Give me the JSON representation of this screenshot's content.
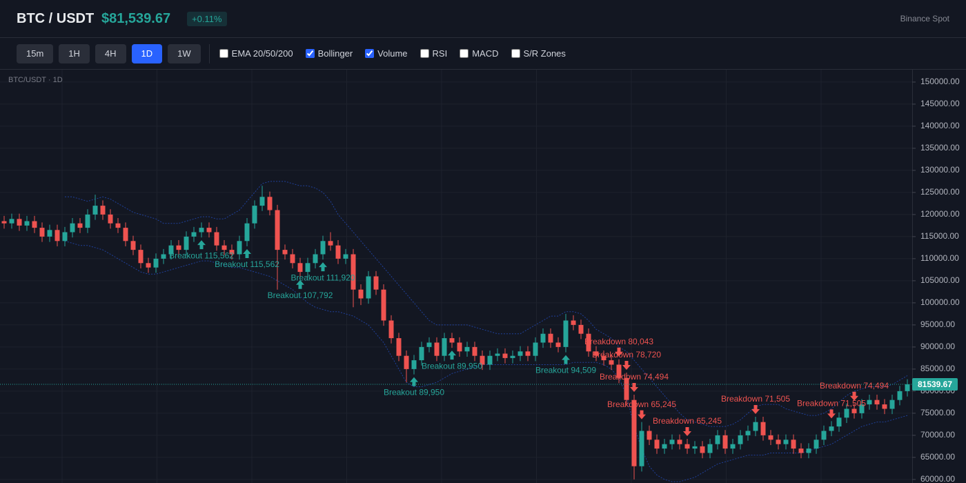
{
  "header": {
    "symbol": "BTC / USDT",
    "price": "$81,539.67",
    "change": "+0.11%",
    "exchange": "Binance Spot"
  },
  "toolbar": {
    "timeframes": [
      {
        "label": "15m",
        "active": false
      },
      {
        "label": "1H",
        "active": false
      },
      {
        "label": "4H",
        "active": false
      },
      {
        "label": "1D",
        "active": true
      },
      {
        "label": "1W",
        "active": false
      }
    ],
    "indicators": [
      {
        "label": "EMA 20/50/200",
        "checked": false
      },
      {
        "label": "Bollinger",
        "checked": true
      },
      {
        "label": "Volume",
        "checked": true
      },
      {
        "label": "RSI",
        "checked": false
      },
      {
        "label": "MACD",
        "checked": false
      },
      {
        "label": "S/R Zones",
        "checked": false
      }
    ]
  },
  "chart_data": {
    "type": "candlestick",
    "title": "BTC/USDT · 1D",
    "up_color": "#26a69a",
    "down_color": "#ef5350",
    "band_color": "#2962ff",
    "grid": true,
    "ylim": [
      59200,
      152800
    ],
    "yticks": [
      {
        "value": 150000,
        "label": "150000.00"
      },
      {
        "value": 145000,
        "label": "145000.00"
      },
      {
        "value": 140000,
        "label": "140000.00"
      },
      {
        "value": 135000,
        "label": "135000.00"
      },
      {
        "value": 130000,
        "label": "130000.00"
      },
      {
        "value": 125000,
        "label": "125000.00"
      },
      {
        "value": 120000,
        "label": "120000.00"
      },
      {
        "value": 115000,
        "label": "115000.00"
      },
      {
        "value": 110000,
        "label": "110000.00"
      },
      {
        "value": 105000,
        "label": "105000.00"
      },
      {
        "value": 100000,
        "label": "100000.00"
      },
      {
        "value": 95000,
        "label": "95000.00"
      },
      {
        "value": 90000,
        "label": "90000.00"
      },
      {
        "value": 85000,
        "label": "85000.00"
      },
      {
        "value": 80000,
        "label": "80000.00"
      },
      {
        "value": 75000,
        "label": "75000.00"
      },
      {
        "value": 70000,
        "label": "70000.00"
      },
      {
        "value": 65000,
        "label": "65000.00"
      },
      {
        "value": 60000,
        "label": "60000.00"
      }
    ],
    "open": [
      118500,
      118000,
      119000,
      117500,
      118500,
      117000,
      115000,
      116500,
      114000,
      116000,
      118000,
      117000,
      120000,
      122000,
      120000,
      118000,
      117000,
      114000,
      112000,
      109000,
      108000,
      110000,
      111000,
      113000,
      112000,
      115000,
      116000,
      117000,
      116000,
      113000,
      112000,
      111000,
      114000,
      118000,
      122000,
      124000,
      121000,
      112000,
      111000,
      109000,
      107000,
      109000,
      111000,
      114000,
      113000,
      110000,
      111000,
      103000,
      101000,
      106000,
      103000,
      96000,
      92000,
      88000,
      85000,
      87000,
      90000,
      91000,
      88000,
      92000,
      91000,
      89000,
      90000,
      88000,
      86000,
      88000,
      88500,
      87500,
      88000,
      89000,
      88000,
      91000,
      93000,
      91000,
      90000,
      96000,
      95000,
      93000,
      89000,
      88000,
      87000,
      86000,
      83000,
      78000,
      63000,
      71000,
      69000,
      67000,
      68000,
      69000,
      68000,
      67000,
      67500,
      66000,
      68000,
      70000,
      67000,
      68000,
      70000,
      71000,
      73000,
      70000,
      69000,
      68000,
      69000,
      67000,
      66000,
      67000,
      69000,
      71000,
      72000,
      74000,
      76000,
      75000,
      77000,
      78000,
      77000,
      76000,
      78000,
      80000
    ],
    "high": [
      119700,
      120200,
      120200,
      119700,
      119700,
      118200,
      117700,
      117700,
      117200,
      119200,
      119200,
      121200,
      124500,
      123200,
      121200,
      119200,
      118200,
      115200,
      113200,
      110200,
      111200,
      112200,
      114200,
      114200,
      116200,
      117200,
      118200,
      118200,
      117200,
      114200,
      113200,
      115200,
      119200,
      123200,
      126500,
      125200,
      122200,
      113200,
      112200,
      110200,
      110200,
      112200,
      115200,
      116000,
      114200,
      112200,
      112200,
      104200,
      107200,
      107200,
      104200,
      97200,
      93200,
      89200,
      88200,
      91200,
      92200,
      92200,
      93200,
      93200,
      92200,
      91200,
      91200,
      89200,
      89200,
      89700,
      89700,
      89200,
      90200,
      90200,
      92200,
      94200,
      94200,
      92200,
      97500,
      97200,
      96200,
      94200,
      90200,
      89200,
      88200,
      87200,
      84200,
      79200,
      73000,
      72200,
      70200,
      69200,
      70200,
      70200,
      69200,
      68700,
      68700,
      69200,
      71200,
      71200,
      69200,
      71200,
      72200,
      74200,
      74200,
      71200,
      70200,
      70200,
      70200,
      68200,
      68200,
      70200,
      72200,
      73200,
      75200,
      77200,
      77200,
      78200,
      79200,
      79200,
      78200,
      79200,
      81200,
      82700
    ],
    "low": [
      116800,
      116800,
      116300,
      116300,
      115800,
      113800,
      113800,
      112800,
      112800,
      114800,
      115800,
      115800,
      118800,
      118800,
      116800,
      115800,
      112800,
      110800,
      107800,
      106800,
      106800,
      108800,
      109800,
      110800,
      110800,
      113800,
      114800,
      114800,
      111800,
      110800,
      109800,
      109800,
      112800,
      116800,
      120800,
      119800,
      103000,
      109800,
      107800,
      105800,
      105800,
      107800,
      109800,
      111800,
      108800,
      108800,
      99000,
      99500,
      99800,
      101800,
      94800,
      90800,
      86800,
      82000,
      83800,
      85800,
      88800,
      86800,
      86800,
      89800,
      87800,
      87800,
      86800,
      84800,
      84800,
      86800,
      86300,
      86300,
      86800,
      86800,
      86800,
      89800,
      89800,
      88800,
      88800,
      93800,
      91800,
      87800,
      86800,
      85800,
      84800,
      81800,
      76800,
      60000,
      61800,
      67800,
      65800,
      65800,
      66800,
      66800,
      65800,
      65800,
      64800,
      64800,
      66800,
      65800,
      65800,
      66800,
      68800,
      69800,
      68800,
      67800,
      66800,
      66800,
      65800,
      64800,
      64800,
      65800,
      67800,
      69800,
      70800,
      72800,
      73800,
      73800,
      75800,
      75800,
      74800,
      74800,
      76800,
      78800
    ],
    "close": [
      118000,
      119000,
      117500,
      118500,
      117000,
      115000,
      116500,
      114000,
      116000,
      118000,
      117000,
      120000,
      122000,
      120000,
      118000,
      117000,
      114000,
      112000,
      109000,
      108000,
      110000,
      111000,
      113000,
      112000,
      115000,
      116000,
      117000,
      116000,
      113000,
      112000,
      111000,
      114000,
      118000,
      122000,
      124000,
      121000,
      112000,
      111000,
      109000,
      107000,
      109000,
      111000,
      114000,
      113000,
      110000,
      111000,
      103000,
      101000,
      106000,
      103000,
      96000,
      92000,
      88000,
      85000,
      87000,
      90000,
      91000,
      88000,
      92000,
      91000,
      89000,
      90000,
      88000,
      86000,
      88000,
      88500,
      87500,
      88000,
      89000,
      88000,
      91000,
      93000,
      91000,
      90000,
      96000,
      95000,
      93000,
      89000,
      88000,
      87000,
      86000,
      83000,
      78000,
      63000,
      71000,
      69000,
      67000,
      68000,
      69000,
      68000,
      67000,
      67500,
      66000,
      68000,
      70000,
      67000,
      68000,
      70000,
      71000,
      73000,
      70000,
      69000,
      68000,
      69000,
      67000,
      66000,
      67000,
      69000,
      71000,
      72000,
      74000,
      76000,
      75000,
      77000,
      78000,
      77000,
      76000,
      78000,
      80000,
      81539.67
    ],
    "bollinger": {
      "upper": [
        null,
        null,
        null,
        null,
        null,
        null,
        null,
        null,
        124000,
        124000,
        123500,
        123000,
        123500,
        124000,
        123500,
        122500,
        121500,
        120500,
        120000,
        119500,
        119000,
        118000,
        118000,
        118000,
        118500,
        119000,
        119500,
        119500,
        119000,
        119000,
        120000,
        121000,
        123000,
        125000,
        127000,
        127500,
        127500,
        127500,
        127000,
        126500,
        126500,
        126000,
        125000,
        123000,
        120000,
        118000,
        116000,
        114000,
        112000,
        110000,
        108000,
        106000,
        104000,
        102000,
        100000,
        98000,
        96000,
        95000,
        95000,
        95000,
        95000,
        95000,
        94500,
        94000,
        93500,
        93000,
        93000,
        93000,
        93000,
        94000,
        95000,
        96000,
        97000,
        97000,
        98000,
        98000,
        97500,
        96000,
        94000,
        93000,
        92000,
        90000,
        89000,
        87000,
        85000,
        83000,
        81000,
        79000,
        77000,
        75000,
        73500,
        73000,
        72500,
        72000,
        72000,
        72000,
        72500,
        73500,
        75000,
        76500,
        77000,
        77000,
        77000,
        76000,
        75500,
        75000,
        74500,
        74500,
        75000,
        76000,
        77500,
        79000,
        80000,
        80500,
        81000,
        81000,
        81000,
        81500,
        82500,
        83500
      ],
      "lower": [
        null,
        null,
        null,
        null,
        null,
        null,
        null,
        null,
        114000,
        113500,
        113000,
        113000,
        112500,
        112000,
        111000,
        110000,
        109000,
        108000,
        107000,
        106500,
        106500,
        107000,
        107500,
        108000,
        108500,
        109000,
        109500,
        109500,
        109000,
        108500,
        108000,
        108000,
        107500,
        107000,
        106500,
        106000,
        105000,
        104000,
        103000,
        101500,
        100000,
        99000,
        98500,
        98000,
        98000,
        97500,
        97000,
        96000,
        95000,
        93000,
        91000,
        88000,
        85000,
        82000,
        81000,
        81000,
        81500,
        82000,
        83000,
        84000,
        84500,
        85000,
        85500,
        86000,
        86000,
        86000,
        86000,
        86000,
        86000,
        86000,
        86000,
        86000,
        86000,
        86000,
        86000,
        86500,
        86500,
        86500,
        86500,
        86000,
        85000,
        83000,
        79000,
        72000,
        67000,
        63000,
        61000,
        60000,
        59500,
        59500,
        60000,
        60500,
        61500,
        62500,
        63500,
        64000,
        64500,
        65000,
        65500,
        65500,
        65500,
        66000,
        66000,
        66000,
        66000,
        66000,
        66500,
        67000,
        67500,
        68000,
        69000,
        70000,
        71000,
        72000,
        72500,
        73000,
        73000,
        73500,
        74000,
        74500
      ]
    },
    "annotations": [
      {
        "label": "Breakout 115,562",
        "candle": 26,
        "direction": "up"
      },
      {
        "label": "Breakout 115,562",
        "candle": 32,
        "direction": "up"
      },
      {
        "label": "Breakout 107,792",
        "candle": 39,
        "direction": "up"
      },
      {
        "label": "Breakout 111,920",
        "candle": 42,
        "direction": "up"
      },
      {
        "label": "Breakout 89,950",
        "candle": 54,
        "direction": "up"
      },
      {
        "label": "Breakout 89,950",
        "candle": 59,
        "direction": "up"
      },
      {
        "label": "Breakout 94,509",
        "candle": 74,
        "direction": "up"
      },
      {
        "label": "Breakdown 80,043",
        "candle": 81,
        "direction": "down"
      },
      {
        "label": "Breakdown 78,720",
        "candle": 82,
        "direction": "down"
      },
      {
        "label": "Breakdown 74,494",
        "candle": 83,
        "direction": "down"
      },
      {
        "label": "Breakdown 65,245",
        "candle": 84,
        "direction": "down"
      },
      {
        "label": "Breakdown 65,245",
        "candle": 90,
        "direction": "down"
      },
      {
        "label": "Breakdown 71,505",
        "candle": 99,
        "direction": "down"
      },
      {
        "label": "Breakdown 71,505",
        "candle": 109,
        "direction": "down"
      },
      {
        "label": "Breakdown 74,494",
        "candle": 112,
        "direction": "down"
      }
    ]
  }
}
